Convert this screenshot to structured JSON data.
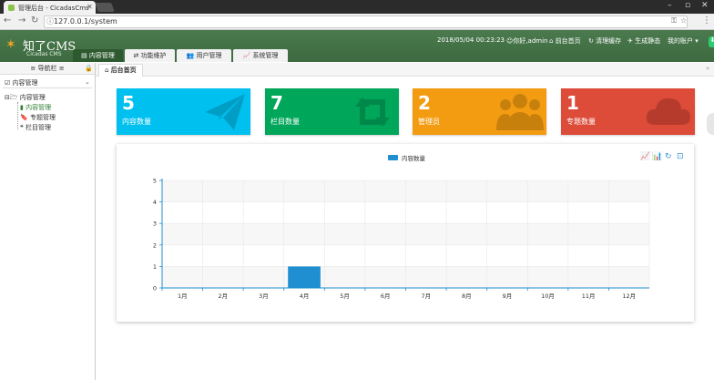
{
  "browser": {
    "tab_title": "管理后台 - CicadasCms",
    "url": "127.0.0.1/system"
  },
  "header": {
    "logo_text": "知了CMS",
    "logo_sub": "Cicadas CMS",
    "datetime": "2018/05/04 00:23:23",
    "greeting": "你好,admin",
    "links": [
      "前台首页",
      "清理缓存",
      "生成静态",
      "我的账户"
    ],
    "nav_tabs": [
      "内容管理",
      "功能维护",
      "用户管理",
      "系统管理"
    ],
    "active_tab": "内容管理"
  },
  "sidebar": {
    "title": "导航栏",
    "select_label": "内容管理",
    "tree_root": "内容管理",
    "tree_items": [
      "内容管理",
      "专题管理",
      "栏目管理"
    ]
  },
  "breadcrumb": {
    "tab_label": "后台首页"
  },
  "stats": [
    {
      "value": "5",
      "label": "内容数量",
      "color": "#00c0ef",
      "icon": "paper-plane-icon"
    },
    {
      "value": "7",
      "label": "栏目数量",
      "color": "#00a65a",
      "icon": "retweet-icon"
    },
    {
      "value": "2",
      "label": "管理员",
      "color": "#f39c12",
      "icon": "users-icon"
    },
    {
      "value": "1",
      "label": "专题数量",
      "color": "#dd4b39",
      "icon": "cloud-icon"
    }
  ],
  "chart_data": {
    "type": "bar",
    "legend": [
      "内容数量"
    ],
    "legend_position": "top-center",
    "categories": [
      "1月",
      "2月",
      "3月",
      "4月",
      "5月",
      "6月",
      "7月",
      "8月",
      "9月",
      "10月",
      "11月",
      "12月"
    ],
    "series": [
      {
        "name": "内容数量",
        "values": [
          0,
          0,
          0,
          1,
          0,
          0,
          0,
          0,
          0,
          0,
          0,
          0
        ],
        "color": "#1f8fd1"
      }
    ],
    "ylim": [
      0,
      5
    ],
    "yticks": [
      "0",
      "1",
      "2",
      "3",
      "4",
      "5"
    ],
    "grid": true,
    "toolbox": [
      "line-chart-icon",
      "bar-chart-icon",
      "refresh-icon",
      "save-icon"
    ]
  }
}
